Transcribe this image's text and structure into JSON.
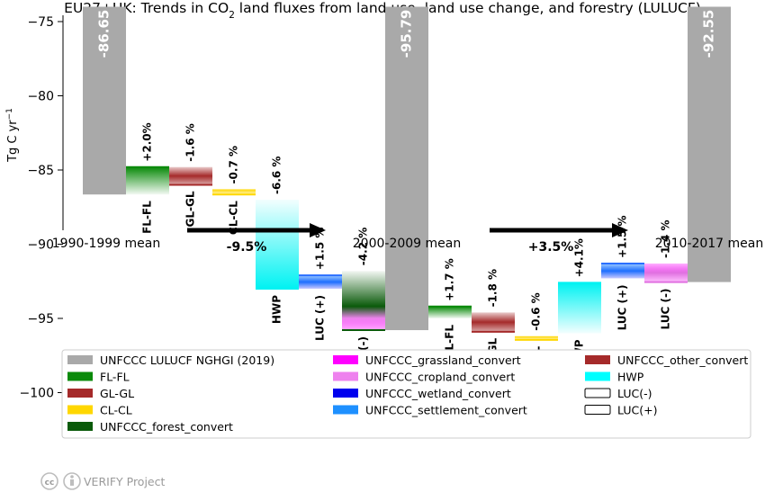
{
  "chart_data": {
    "type": "bar",
    "title_prefix": "EU27+UK: Trends in CO",
    "title_sub": "2",
    "title_suffix": " land fluxes from land use, land use change, and forestry (LULUCF)",
    "ylabel": "Tg C yr",
    "ylabel_sup": "−1",
    "ylim": [
      -104,
      -74
    ],
    "yticks": [
      -75,
      -80,
      -85,
      -90,
      -95,
      -100
    ],
    "ytick_labels": [
      "−75",
      "−80",
      "−85",
      "−90",
      "−95",
      "−100"
    ],
    "totals": [
      {
        "label": "1990-1999 mean",
        "value": -86.65,
        "value_label": "-86.65"
      },
      {
        "label": "2000-2009 mean",
        "value": -95.79,
        "value_label": "-95.79"
      },
      {
        "label": "2010-2017 mean",
        "value": -92.55,
        "value_label": "-92.55"
      }
    ],
    "steps": [
      {
        "name": "FL-FL",
        "pct": "+2.0%",
        "start": -86.65,
        "end": -84.8,
        "color": "#0a8a0a"
      },
      {
        "name": "GL-GL",
        "pct": "-1.6 %",
        "start": -84.8,
        "end": -86.0,
        "color": "#a52a2a"
      },
      {
        "name": "CL-CL",
        "pct": "-0.7 %",
        "start": -86.3,
        "end": -86.65,
        "color": "#ffd700"
      },
      {
        "name": "HWP",
        "pct": "-6.6 %",
        "start": -87.0,
        "end": -93.0,
        "color": "#00f2f2"
      },
      {
        "name": "LUC (+)",
        "pct": "+1.5 %",
        "start": -93.0,
        "end": -92.1,
        "color": "#2a6fff"
      },
      {
        "name": "LUC (-)",
        "pct": "-4.2 %",
        "start": -91.8,
        "end": -95.79,
        "color": "#0a5a0a"
      },
      {
        "name": "FL-FL",
        "pct": "+1.7 %",
        "start": -95.0,
        "end": -94.2,
        "color": "#0a8a0a"
      },
      {
        "name": "GL-GL",
        "pct": "-1.8 %",
        "start": -94.6,
        "end": -95.9,
        "color": "#a52a2a"
      },
      {
        "name": "CL-CL",
        "pct": "-0.6 %",
        "start": -96.2,
        "end": -96.45,
        "color": "#ffd700"
      },
      {
        "name": "HWP",
        "pct": "+4.1%",
        "start": -96.0,
        "end": -92.6,
        "color": "#00f2f2"
      },
      {
        "name": "LUC (+)",
        "pct": "+1.5 %",
        "start": -92.3,
        "end": -91.3,
        "color": "#2a6fff"
      },
      {
        "name": "LUC (-)",
        "pct": "-1.4 %",
        "start": -91.3,
        "end": -92.55,
        "color": "#e070e0"
      }
    ],
    "trends": [
      {
        "label": "-9.5%"
      },
      {
        "label": "+3.5%"
      }
    ],
    "legend": [
      {
        "label": "UNFCCC LULUCF NGHGI (2019)",
        "color": "#a9a9a9"
      },
      {
        "label": "FL-FL",
        "color": "#0a8a0a"
      },
      {
        "label": "GL-GL",
        "color": "#a52a2a"
      },
      {
        "label": "CL-CL",
        "color": "#ffd700"
      },
      {
        "label": "UNFCCC_forest_convert",
        "color": "#0a5a0a"
      },
      {
        "label": "UNFCCC_grassland_convert",
        "color": "#ff00ff"
      },
      {
        "label": "UNFCCC_cropland_convert",
        "color": "#ee82ee"
      },
      {
        "label": "UNFCCC_wetland_convert",
        "color": "#0000ee"
      },
      {
        "label": "UNFCCC_settlement_convert",
        "color": "#1e90ff"
      },
      {
        "label": "UNFCCC_other_convert",
        "color": "#a52a2a"
      },
      {
        "label": "HWP",
        "color": "#00ffff"
      },
      {
        "label": "LUC(-)",
        "color": "#ffffff"
      },
      {
        "label": "LUC(+)",
        "color": "#ffffff"
      }
    ],
    "footer": "VERIFY Project"
  }
}
